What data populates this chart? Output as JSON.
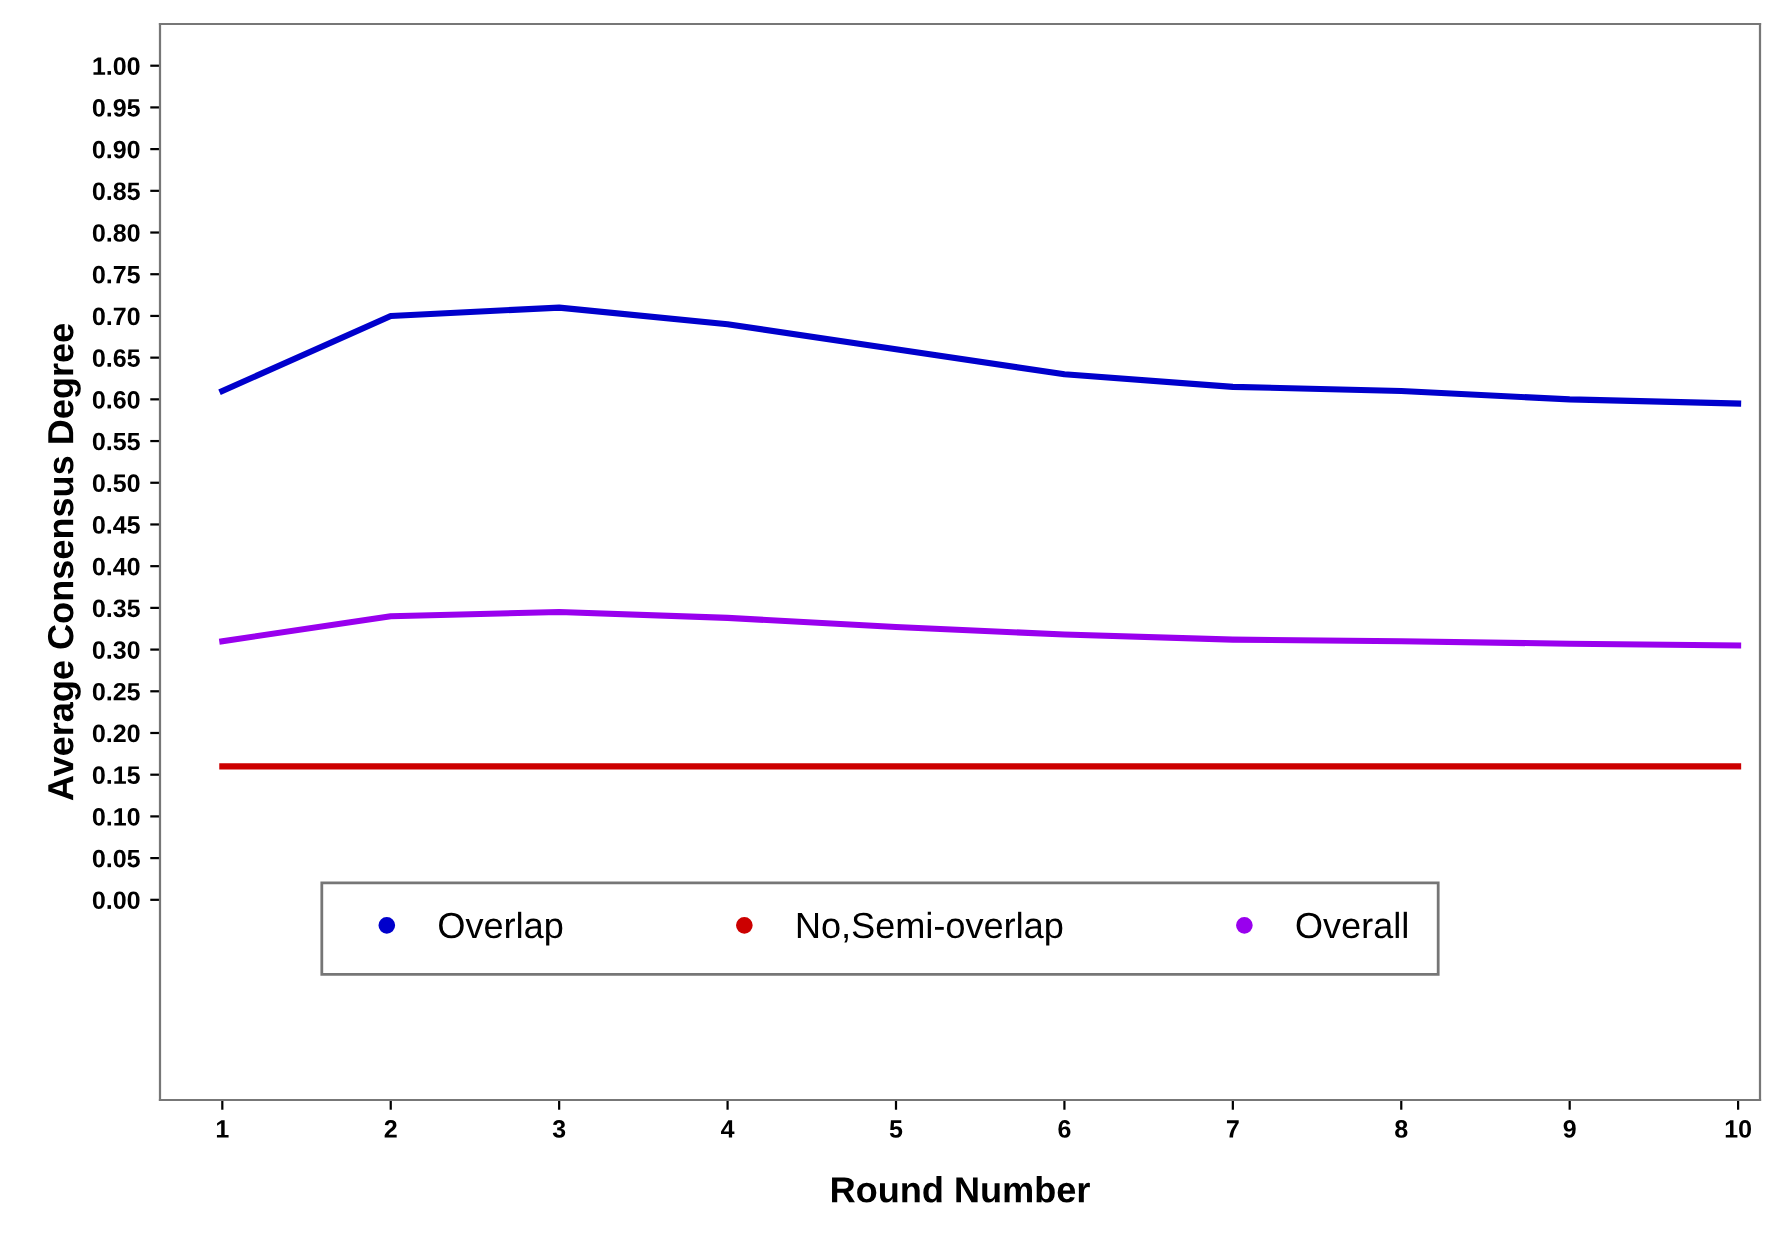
{
  "chart_data": {
    "type": "line",
    "xlabel": "Round Number",
    "ylabel": "Average Consensus Degree",
    "x": [
      1,
      2,
      3,
      4,
      5,
      6,
      7,
      8,
      9,
      10
    ],
    "series": [
      {
        "name": "Overlap",
        "color": "#0000cc",
        "values": [
          0.61,
          0.7,
          0.71,
          0.69,
          0.66,
          0.63,
          0.615,
          0.61,
          0.6,
          0.595
        ]
      },
      {
        "name": "No,Semi-overlap",
        "color": "#cc0000",
        "values": [
          0.16,
          0.16,
          0.16,
          0.16,
          0.16,
          0.16,
          0.16,
          0.16,
          0.16,
          0.16
        ]
      },
      {
        "name": "Overall",
        "color": "#9900ee",
        "values": [
          0.31,
          0.34,
          0.345,
          0.338,
          0.327,
          0.318,
          0.312,
          0.31,
          0.307,
          0.305
        ]
      }
    ],
    "xlim": [
      0.63,
      10.13
    ],
    "xticks": [
      1,
      2,
      3,
      4,
      5,
      6,
      7,
      8,
      9,
      10
    ],
    "ylim": [
      -0.24,
      1.05
    ],
    "yticks": [
      {
        "value": 0,
        "label": "0.00"
      },
      {
        "value": 0.05,
        "label": "0.05"
      },
      {
        "value": 0.1,
        "label": "0.10"
      },
      {
        "value": 0.15,
        "label": "0.15"
      },
      {
        "value": 0.2,
        "label": "0.20"
      },
      {
        "value": 0.25,
        "label": "0.25"
      },
      {
        "value": 0.3,
        "label": "0.30"
      },
      {
        "value": 0.35,
        "label": "0.35"
      },
      {
        "value": 0.4,
        "label": "0.40"
      },
      {
        "value": 0.45,
        "label": "0.45"
      },
      {
        "value": 0.5,
        "label": "0.50"
      },
      {
        "value": 0.55,
        "label": "0.55"
      },
      {
        "value": 0.6,
        "label": "0.60"
      },
      {
        "value": 0.65,
        "label": "0.65"
      },
      {
        "value": 0.7,
        "label": "0.70"
      },
      {
        "value": 0.75,
        "label": "0.75"
      },
      {
        "value": 0.8,
        "label": "0.80"
      },
      {
        "value": 0.85,
        "label": "0.85"
      },
      {
        "value": 0.9,
        "label": "0.90"
      },
      {
        "value": 0.95,
        "label": "0.95"
      },
      {
        "value": 1,
        "label": "1.00"
      }
    ],
    "legend": "bottom",
    "grid": false,
    "marker": "none",
    "line_style": "solid"
  }
}
